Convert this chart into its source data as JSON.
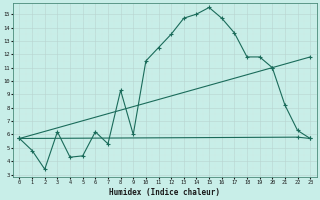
{
  "title": "",
  "xlabel": "Humidex (Indice chaleur)",
  "bg_color": "#c8eee8",
  "grid_color": "#b0c8c4",
  "line_color": "#1a6b5a",
  "xlim": [
    -0.5,
    23.5
  ],
  "ylim": [
    2.8,
    15.8
  ],
  "xticks": [
    0,
    1,
    2,
    3,
    4,
    5,
    6,
    7,
    8,
    9,
    10,
    11,
    12,
    13,
    14,
    15,
    16,
    17,
    18,
    19,
    20,
    21,
    22,
    23
  ],
  "yticks": [
    3,
    4,
    5,
    6,
    7,
    8,
    9,
    10,
    11,
    12,
    13,
    14,
    15
  ],
  "line1_x": [
    0,
    1,
    2,
    3,
    4,
    5,
    6,
    7,
    8,
    9,
    10,
    11,
    12,
    13,
    14,
    15,
    16,
    17,
    18,
    19,
    20,
    21,
    22,
    23
  ],
  "line1_y": [
    5.7,
    4.8,
    3.4,
    6.2,
    4.3,
    4.4,
    6.2,
    5.3,
    9.3,
    6.0,
    11.5,
    12.5,
    13.5,
    14.7,
    15.0,
    15.5,
    14.7,
    13.6,
    11.8,
    11.8,
    11.0,
    8.2,
    6.3,
    5.7
  ],
  "line2_x": [
    0,
    20,
    23
  ],
  "line2_y": [
    5.7,
    11.0,
    11.8
  ],
  "line3_x": [
    0,
    22,
    23
  ],
  "line3_y": [
    5.7,
    5.8,
    5.7
  ]
}
